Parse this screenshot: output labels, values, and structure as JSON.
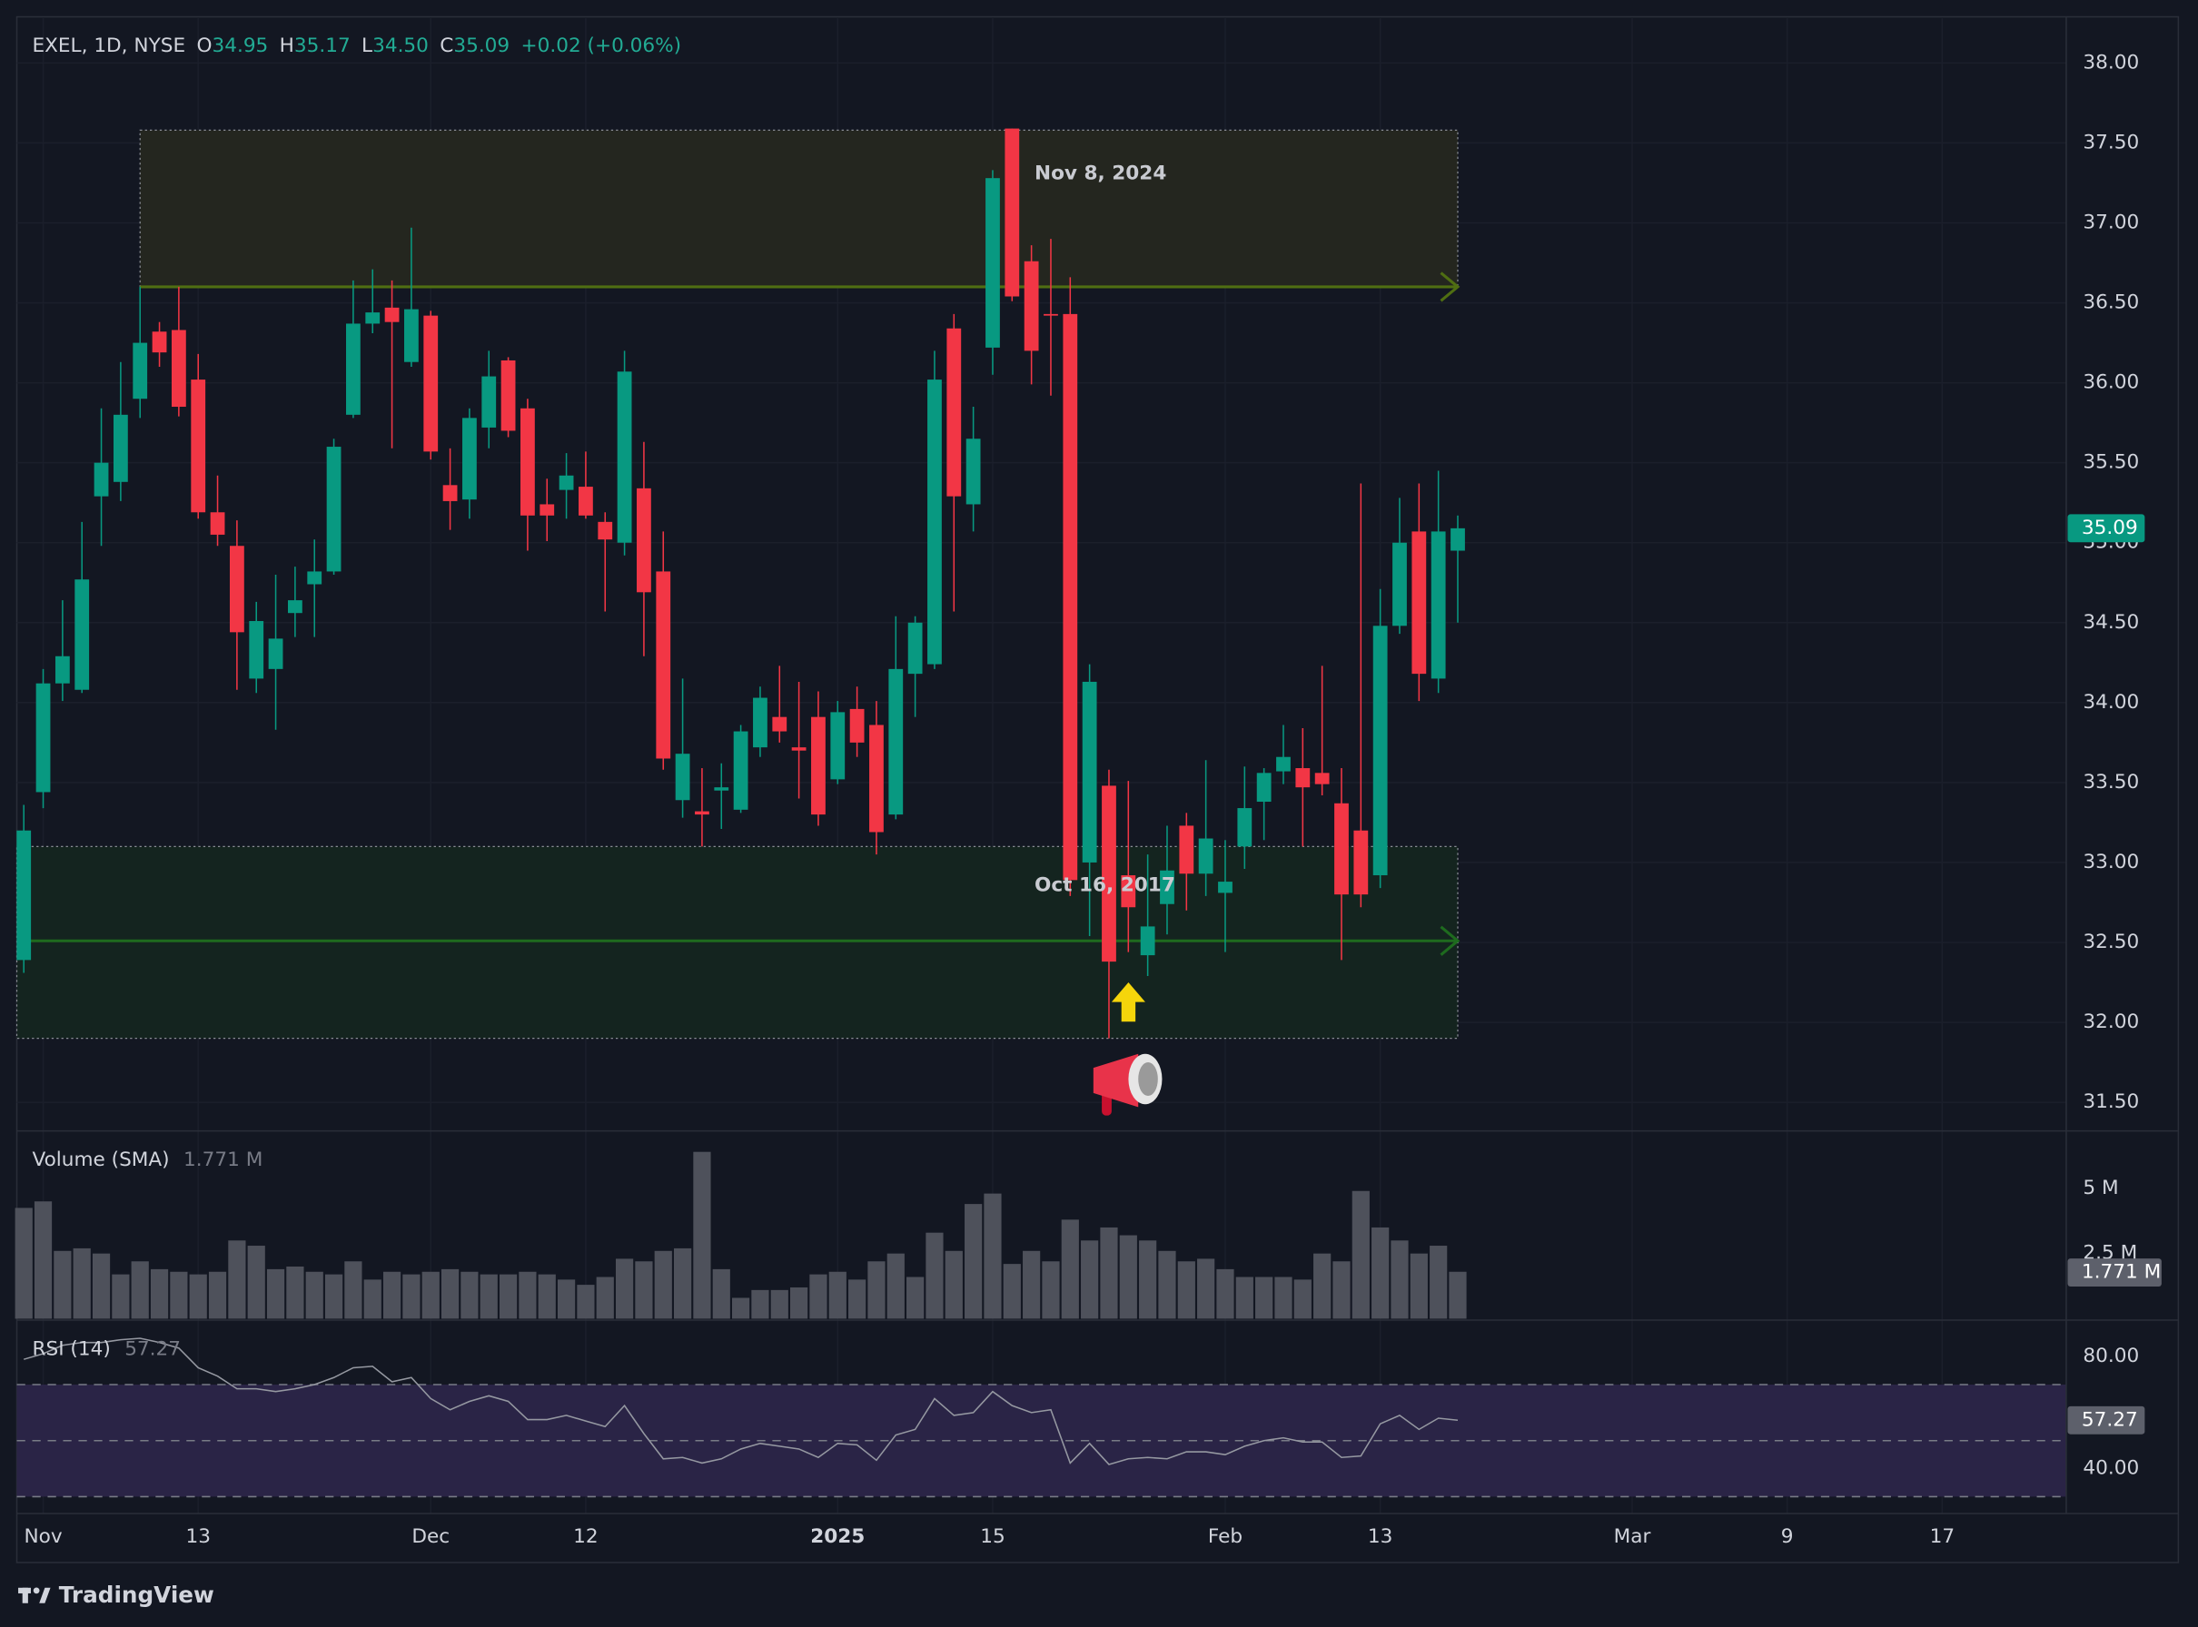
{
  "chart_data": [
    {
      "type": "candlestick",
      "title": "EXEL, 1D, NYSE",
      "ohlc_legend": [
        {
          "label": "O",
          "value": "34.95"
        },
        {
          "label": "H",
          "value": "35.17"
        },
        {
          "label": "L",
          "value": "34.50"
        },
        {
          "label": "C",
          "value": "35.09"
        }
      ],
      "change": "+0.02 (+0.06%)",
      "open": [
        32.39,
        33.44,
        34.12,
        34.08,
        35.29,
        35.38,
        35.9,
        36.32,
        36.33,
        36.02,
        35.19,
        34.98,
        34.15,
        34.21,
        34.56,
        34.74,
        34.82,
        35.8,
        36.37,
        36.47,
        36.13,
        36.42,
        35.36,
        35.27,
        35.72,
        36.14,
        35.84,
        35.24,
        35.33,
        35.35,
        35.13,
        35.0,
        35.34,
        34.82,
        33.39,
        33.32,
        33.45,
        33.33,
        33.72,
        33.91,
        33.72,
        33.91,
        33.52,
        33.96,
        33.86,
        33.3,
        34.18,
        34.24,
        36.34,
        35.24,
        36.22,
        37.59,
        36.76,
        36.43,
        36.43,
        33.0,
        33.48,
        32.92,
        32.42,
        32.74,
        33.23,
        32.93,
        32.81,
        33.1,
        33.38,
        33.57,
        33.59,
        33.56,
        33.37,
        33.2,
        32.92,
        34.48,
        35.07,
        34.15,
        34.95
      ],
      "high": [
        33.36,
        34.21,
        34.64,
        35.13,
        35.84,
        36.13,
        36.6,
        36.38,
        36.6,
        36.18,
        35.42,
        35.14,
        34.63,
        34.8,
        34.85,
        35.02,
        35.65,
        36.64,
        36.71,
        36.64,
        36.97,
        36.45,
        35.59,
        35.84,
        36.2,
        36.16,
        35.9,
        35.4,
        35.56,
        35.57,
        35.19,
        36.2,
        35.63,
        35.07,
        34.15,
        33.59,
        33.62,
        33.86,
        34.1,
        34.23,
        34.13,
        34.07,
        34.01,
        34.1,
        34.01,
        34.54,
        34.54,
        36.2,
        36.43,
        35.85,
        37.33,
        37.59,
        36.86,
        36.9,
        36.66,
        34.24,
        33.58,
        33.51,
        33.05,
        33.23,
        33.31,
        33.64,
        33.14,
        33.6,
        33.59,
        33.86,
        33.84,
        34.23,
        33.59,
        35.37,
        34.71,
        35.28,
        35.37,
        35.45,
        35.17
      ],
      "low": [
        32.31,
        33.34,
        34.01,
        34.06,
        34.98,
        35.26,
        35.78,
        36.1,
        35.79,
        35.15,
        34.98,
        34.08,
        34.06,
        33.83,
        34.41,
        34.41,
        34.8,
        35.78,
        36.31,
        35.59,
        36.1,
        35.52,
        35.08,
        35.15,
        35.59,
        35.66,
        34.95,
        35.01,
        35.15,
        35.15,
        34.57,
        34.92,
        34.29,
        33.58,
        33.28,
        33.1,
        33.21,
        33.31,
        33.66,
        33.75,
        33.4,
        33.23,
        33.49,
        33.66,
        33.05,
        33.27,
        33.91,
        34.21,
        34.57,
        35.07,
        36.05,
        36.51,
        35.99,
        35.92,
        32.79,
        32.54,
        31.9,
        32.44,
        32.29,
        32.55,
        32.7,
        32.79,
        32.44,
        32.96,
        33.14,
        33.49,
        33.1,
        33.42,
        32.39,
        32.72,
        32.84,
        34.43,
        34.01,
        34.06,
        34.5
      ],
      "close": [
        33.2,
        34.12,
        34.29,
        34.77,
        35.5,
        35.8,
        36.25,
        36.19,
        35.85,
        35.19,
        35.05,
        34.44,
        34.51,
        34.4,
        34.64,
        34.82,
        35.6,
        36.37,
        36.44,
        36.38,
        36.46,
        35.57,
        35.26,
        35.78,
        36.04,
        35.7,
        35.17,
        35.17,
        35.42,
        35.17,
        35.02,
        36.07,
        34.69,
        33.65,
        33.68,
        33.3,
        33.47,
        33.82,
        34.03,
        33.82,
        33.7,
        33.3,
        33.94,
        33.75,
        33.19,
        34.21,
        34.5,
        36.02,
        35.29,
        35.65,
        37.28,
        36.54,
        36.2,
        36.42,
        32.89,
        34.13,
        32.38,
        32.72,
        32.6,
        32.95,
        32.93,
        33.15,
        32.88,
        33.34,
        33.56,
        33.66,
        33.47,
        33.49,
        32.8,
        32.8,
        34.48,
        35.0,
        34.18,
        35.07,
        35.09
      ],
      "up_color": "#089981",
      "down_color": "#f23645",
      "last_label": "35.09",
      "xlim": [
        -0.36,
        105.4
      ],
      "xticks": [
        {
          "value": 1,
          "label": "Nov"
        },
        {
          "value": 9,
          "label": "13"
        },
        {
          "value": 21,
          "label": "Dec"
        },
        {
          "value": 29,
          "label": "12"
        },
        {
          "value": 42,
          "label": "2025"
        },
        {
          "value": 50,
          "label": "15"
        },
        {
          "value": 62,
          "label": "Feb"
        },
        {
          "value": 70,
          "label": "13"
        },
        {
          "value": 83,
          "label": "Mar"
        },
        {
          "value": 91,
          "label": "9"
        },
        {
          "value": 99,
          "label": "17"
        }
      ],
      "ylim": [
        31.33,
        38.28
      ],
      "yticks": [
        {
          "value": 31.5,
          "label": "31.50"
        },
        {
          "value": 32,
          "label": "32.00"
        },
        {
          "value": 32.5,
          "label": "32.50"
        },
        {
          "value": 33,
          "label": "33.00"
        },
        {
          "value": 33.5,
          "label": "33.50"
        },
        {
          "value": 34,
          "label": "34.00"
        },
        {
          "value": 34.5,
          "label": "34.50"
        },
        {
          "value": 35,
          "label": "35.00"
        },
        {
          "value": 35.5,
          "label": "35.50"
        },
        {
          "value": 36,
          "label": "36.00"
        },
        {
          "value": 36.5,
          "label": "36.50"
        },
        {
          "value": 37,
          "label": "37.00"
        },
        {
          "value": 37.5,
          "label": "37.50"
        },
        {
          "value": 38,
          "label": "38.00"
        }
      ],
      "grid": true,
      "zones": [
        {
          "label": "Nov 8, 2024",
          "x": [
            6,
            74
          ],
          "y": [
            36.6,
            37.58
          ],
          "line": 36.6,
          "fill": "#24261f",
          "color": "#4f6e12"
        },
        {
          "label": "Oct 16, 2017",
          "x": [
            -0.36,
            74
          ],
          "y": [
            31.9,
            33.1
          ],
          "line": 32.51,
          "fill": "#14241f",
          "color": "#1e6b1e"
        }
      ]
    },
    {
      "type": "bar",
      "title": "Volume (SMA)",
      "sma": 1.771,
      "sma_label": "1.771 M",
      "values": [
        4.25,
        4.5,
        2.6,
        2.7,
        2.5,
        1.7,
        2.2,
        1.9,
        1.8,
        1.7,
        1.8,
        3.0,
        2.8,
        1.9,
        2.0,
        1.8,
        1.7,
        2.2,
        1.5,
        1.8,
        1.7,
        1.8,
        1.9,
        1.8,
        1.7,
        1.7,
        1.8,
        1.7,
        1.5,
        1.3,
        1.6,
        2.3,
        2.2,
        2.6,
        2.7,
        6.4,
        1.9,
        0.8,
        1.1,
        1.1,
        1.2,
        1.7,
        1.8,
        1.5,
        2.2,
        2.5,
        1.6,
        3.3,
        2.6,
        4.4,
        4.8,
        2.1,
        2.6,
        2.2,
        3.8,
        3.0,
        3.5,
        3.2,
        3.0,
        2.6,
        2.2,
        2.3,
        1.9,
        1.6,
        1.6,
        1.6,
        1.5,
        2.5,
        2.2,
        4.9,
        3.5,
        3.0,
        2.5,
        2.8,
        1.8
      ],
      "color": "#4e515b",
      "ylim": [
        0,
        7.15
      ],
      "yticks": [
        {
          "value": 5,
          "label": "5 M"
        },
        {
          "value": 2.5,
          "label": "2.5 M"
        }
      ]
    },
    {
      "type": "line",
      "title": "RSI (14)",
      "last_label": "57.27",
      "values": [
        79,
        81,
        84,
        85,
        85,
        86,
        86.5,
        85,
        83,
        76,
        73,
        68.5,
        68.5,
        67.5,
        68.5,
        70,
        72.5,
        76,
        76.5,
        71,
        72.5,
        65,
        61,
        64,
        66,
        64,
        57.5,
        57.5,
        59,
        57,
        55,
        62.5,
        52.5,
        43.5,
        44,
        42,
        43.5,
        47,
        49,
        48,
        47,
        44,
        49,
        48.5,
        43,
        52,
        54,
        65,
        59,
        60,
        67.5,
        62.5,
        60,
        61,
        42,
        49,
        41.5,
        43.5,
        44,
        43.5,
        46,
        46,
        45,
        48,
        50,
        51,
        49.5,
        49.5,
        44,
        44.5,
        56,
        59,
        54,
        58,
        57.27
      ],
      "color": "#9598a1",
      "band_color": "#2a2446",
      "levels": [
        70,
        50,
        30
      ],
      "ylim": [
        24,
        92.5
      ],
      "yticks": [
        {
          "value": 80,
          "label": "80.00"
        },
        {
          "value": 40,
          "label": "40.00"
        }
      ]
    }
  ],
  "footer": {
    "brand": "TradingView"
  }
}
